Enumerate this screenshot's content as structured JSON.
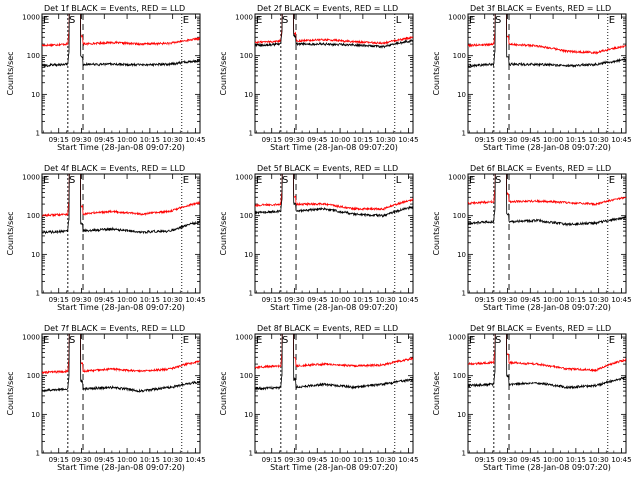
{
  "chart_data": {
    "type": "line",
    "x_tick_labels": [
      "09:15",
      "09:30",
      "09:45",
      "10:00",
      "10:15",
      "10:30",
      "10:45"
    ],
    "x_ticks_min": [
      15,
      30,
      45,
      60,
      75,
      90,
      105
    ],
    "xlim_min": [
      4,
      108
    ],
    "xlabel": "Start Time (28-Jan-08 09:07:20)",
    "ylabel": "Counts/sec",
    "y_tick_labels": [
      "1",
      "10",
      "100",
      "1000"
    ],
    "yscale": "log",
    "ylim": [
      1,
      1200
    ],
    "legend_text": "BLACK = Events, RED = LLD",
    "colors": {
      "events": "#000000",
      "lld": "#ff0000"
    },
    "panels": [
      {
        "title": "Det 1f",
        "events_level": [
          60,
          60,
          58,
          60,
          75
        ],
        "lld_level": [
          200,
          220,
          200,
          210,
          280
        ],
        "markers": {
          "E_left": 4,
          "S": 27,
          "E_right": 96
        }
      },
      {
        "title": "Det 2f",
        "events_level": [
          200,
          200,
          190,
          170,
          250
        ],
        "lld_level": [
          240,
          260,
          230,
          210,
          300
        ],
        "markers": {
          "E_left": 4,
          "S": 27,
          "L": 96
        }
      },
      {
        "title": "Det 3f",
        "events_level": [
          60,
          60,
          55,
          60,
          80
        ],
        "lld_level": [
          200,
          180,
          130,
          120,
          180
        ],
        "markers": {
          "E_left": 4,
          "S": 27,
          "E_right": 96
        }
      },
      {
        "title": "Det 4f",
        "events_level": [
          40,
          45,
          38,
          40,
          70
        ],
        "lld_level": [
          110,
          130,
          110,
          130,
          220
        ],
        "markers": {
          "E_left": 4,
          "S": 27,
          "E_right": 96
        }
      },
      {
        "title": "Det 5f",
        "events_level": [
          130,
          150,
          110,
          100,
          170
        ],
        "lld_level": [
          200,
          200,
          150,
          150,
          260
        ],
        "markers": {
          "E_left": 4,
          "S": 27,
          "L": 96
        }
      },
      {
        "title": "Det 6f",
        "events_level": [
          70,
          75,
          60,
          65,
          90
        ],
        "lld_level": [
          230,
          240,
          220,
          200,
          300
        ],
        "markers": {
          "E_left": 4,
          "S": 27,
          "E_right": 96
        }
      },
      {
        "title": "Det 7f",
        "events_level": [
          45,
          50,
          40,
          50,
          70
        ],
        "lld_level": [
          130,
          150,
          130,
          150,
          240
        ],
        "markers": {
          "E_left": 4,
          "S": 27,
          "E_right": 96
        }
      },
      {
        "title": "Det 8f",
        "events_level": [
          50,
          60,
          50,
          60,
          80
        ],
        "lld_level": [
          180,
          200,
          180,
          190,
          280
        ],
        "markers": {
          "E_left": 4,
          "S": 27,
          "L": 96
        }
      },
      {
        "title": "Det 9f",
        "events_level": [
          60,
          65,
          50,
          55,
          90
        ],
        "lld_level": [
          220,
          200,
          150,
          140,
          260
        ],
        "markers": {
          "E_left": 4,
          "S": 27,
          "E_right": 96
        }
      }
    ]
  }
}
